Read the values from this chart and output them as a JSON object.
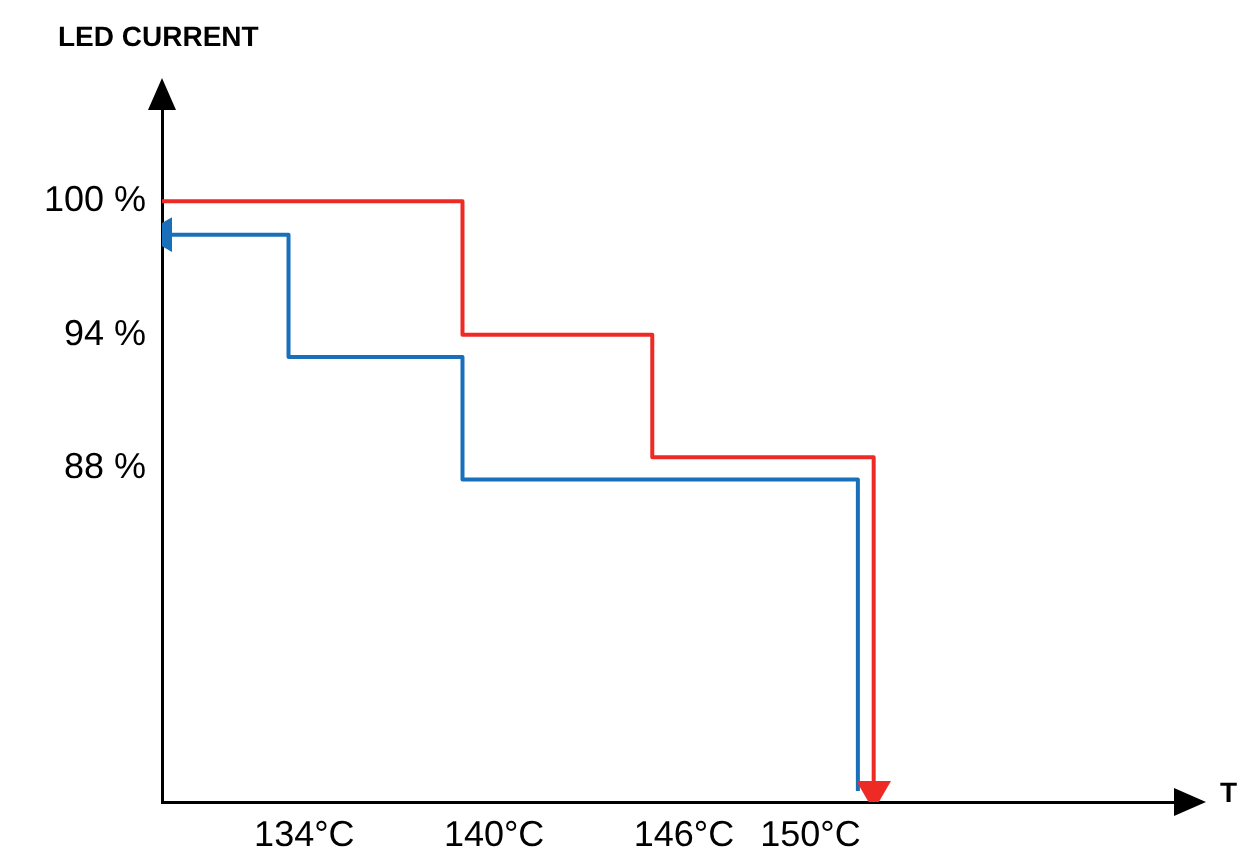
{
  "chart_data": {
    "type": "step",
    "ylabel": "LED CURRENT",
    "xlabel": "T",
    "xlim": [
      129.5,
      162
    ],
    "xticks": [
      {
        "value": 134,
        "label": "134°C"
      },
      {
        "value": 140,
        "label": "140°C"
      },
      {
        "value": 146,
        "label": "146°C"
      },
      {
        "value": 150,
        "label": "150°C"
      }
    ],
    "ylim": [
      73,
      105
    ],
    "yticks": [
      {
        "value": 100,
        "label": "100 %"
      },
      {
        "value": 94,
        "label": "94 %"
      },
      {
        "value": 88,
        "label": "88 %"
      }
    ],
    "series": [
      {
        "color": "#ee2a24",
        "x": [
          129.5,
          139,
          145,
          152
        ],
        "values": [
          100,
          94,
          88.5,
          73.5
        ]
      },
      {
        "color": "#1a6fba",
        "x": [
          129.5,
          133.5,
          139,
          151.5
        ],
        "values": [
          98.5,
          93,
          87.5,
          73.5
        ]
      }
    ],
    "grid": false,
    "legend": false,
    "marker": "none",
    "line_style": "solid"
  }
}
